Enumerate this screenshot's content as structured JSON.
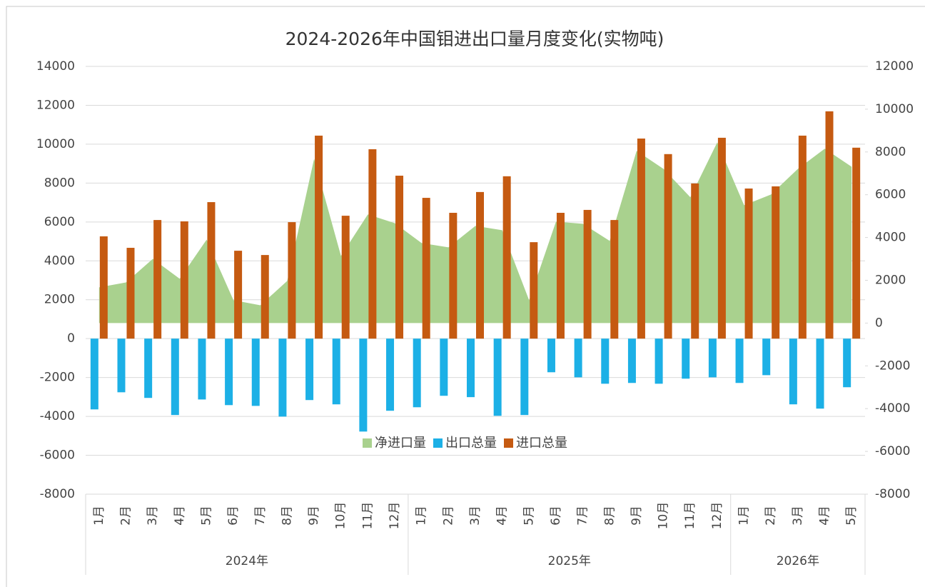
{
  "chart_data": {
    "type": "combo",
    "title": "2024-2026年中国钼进出口量月度变化(实物吨)",
    "groups": [
      {
        "name": "2024年",
        "categories": [
          "1月",
          "2月",
          "3月",
          "4月",
          "5月",
          "6月",
          "7月",
          "8月",
          "9月",
          "10月",
          "11月",
          "12月"
        ]
      },
      {
        "name": "2025年",
        "categories": [
          "1月",
          "2月",
          "3月",
          "4月",
          "5月",
          "6月",
          "7月",
          "8月",
          "9月",
          "10月",
          "11月",
          "12月"
        ]
      },
      {
        "name": "2026年",
        "categories": [
          "1月",
          "2月",
          "3月",
          "4月",
          "5月"
        ]
      }
    ],
    "series": [
      {
        "name": "净进口量",
        "type": "area",
        "axis": "y2",
        "color": "#a9d18e",
        "values": [
          1670,
          1900,
          3000,
          2070,
          3900,
          1070,
          830,
          1970,
          7680,
          3140,
          5080,
          4670,
          3740,
          3540,
          4540,
          4340,
          1070,
          4740,
          4640,
          3840,
          8050,
          7210,
          5880,
          8450,
          5510,
          6010,
          7210,
          8150,
          7310
        ]
      },
      {
        "name": "出口总量",
        "type": "bar",
        "axis": "y",
        "color": "#1cb0e6",
        "values": [
          -3640,
          -2760,
          -3050,
          -3930,
          -3130,
          -3420,
          -3460,
          -4010,
          -3160,
          -3380,
          -4780,
          -3710,
          -3530,
          -2940,
          -3010,
          -3970,
          -3930,
          -1730,
          -1990,
          -2320,
          -2280,
          -2320,
          -2060,
          -1990,
          -2280,
          -1880,
          -3380,
          -3600,
          -2500
        ]
      },
      {
        "name": "进口总量",
        "type": "bar",
        "axis": "y",
        "color": "#c55a11",
        "values": [
          5260,
          4670,
          6100,
          6030,
          7020,
          4520,
          4300,
          5990,
          10440,
          6320,
          9740,
          8380,
          7240,
          6470,
          7540,
          8350,
          4960,
          6470,
          6620,
          6100,
          10290,
          9490,
          7980,
          10330,
          7720,
          7830,
          10440,
          11690,
          9820
        ]
      }
    ],
    "ylim": [
      -8000,
      14000
    ],
    "yticks": [
      -8000,
      -6000,
      -4000,
      -2000,
      0,
      2000,
      4000,
      6000,
      8000,
      10000,
      12000,
      14000
    ],
    "y2lim": [
      -8000,
      12000
    ],
    "y2ticks": [
      -8000,
      -6000,
      -4000,
      -2000,
      0,
      2000,
      4000,
      6000,
      8000,
      10000,
      12000
    ],
    "grid": true,
    "legend": "inside-bottom"
  }
}
